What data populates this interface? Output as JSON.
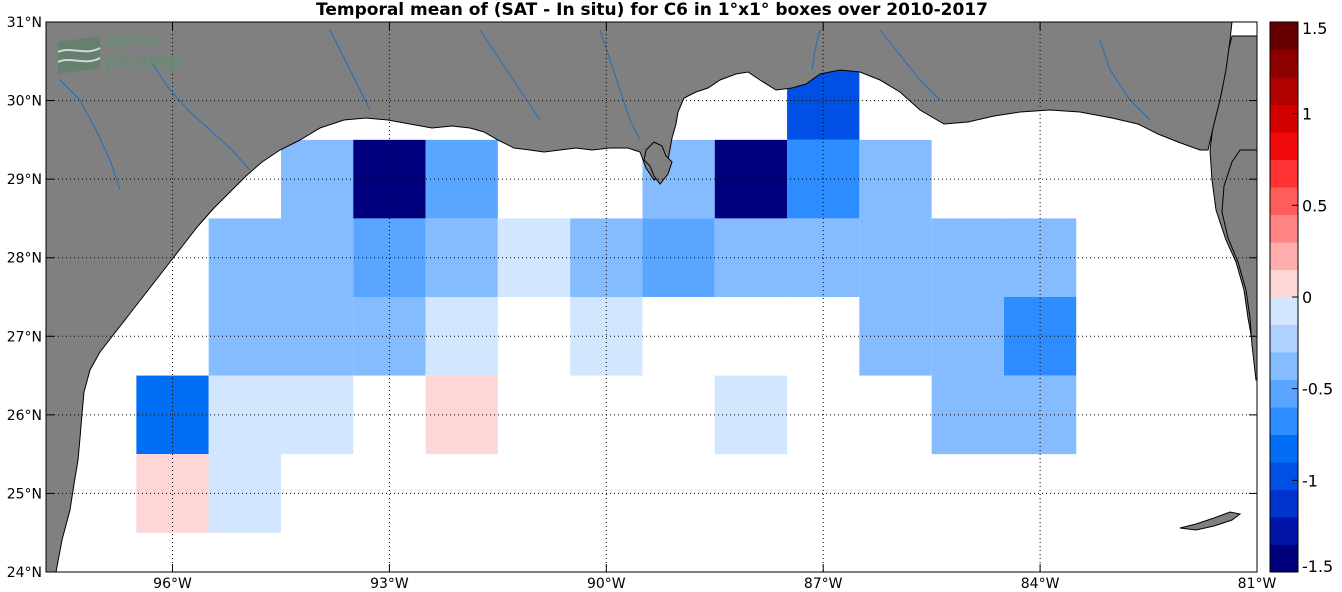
{
  "title": "Temporal mean of (SAT - In situ) for C6 in 1°x1° boxes over 2010-2017",
  "logo": {
    "line1": "smos",
    "line2": "pi-mep"
  },
  "colors": {
    "land": "#808080",
    "coast": "#000000",
    "river": "#1f6fbf",
    "grid": "#000000"
  },
  "chart_data": {
    "type": "heatmap",
    "title": "Temporal mean of (SAT - In situ) for C6 in 1°x1° boxes over 2010-2017",
    "xlim": [
      -97.75,
      -81
    ],
    "ylim": [
      24,
      31
    ],
    "xticks": [
      {
        "value": -96,
        "label": "96°W"
      },
      {
        "value": -93,
        "label": "93°W"
      },
      {
        "value": -90,
        "label": "90°W"
      },
      {
        "value": -87,
        "label": "87°W"
      },
      {
        "value": -84,
        "label": "84°W"
      },
      {
        "value": -81,
        "label": "81°W"
      }
    ],
    "yticks": [
      {
        "value": 24,
        "label": "24°N"
      },
      {
        "value": 25,
        "label": "25°N"
      },
      {
        "value": 26,
        "label": "26°N"
      },
      {
        "value": 27,
        "label": "27°N"
      },
      {
        "value": 28,
        "label": "28°N"
      },
      {
        "value": 29,
        "label": "29°N"
      },
      {
        "value": 30,
        "label": "30°N"
      },
      {
        "value": 31,
        "label": "31°N"
      }
    ],
    "grid": true,
    "colorbar": {
      "range": [
        -1.5,
        1.5
      ],
      "ticks": [
        {
          "value": 1.5,
          "label": "1.5"
        },
        {
          "value": 1,
          "label": "1"
        },
        {
          "value": 0.5,
          "label": "0.5"
        },
        {
          "value": 0,
          "label": "0"
        },
        {
          "value": -0.5,
          "label": "-0.5"
        },
        {
          "value": -1,
          "label": "-1"
        },
        {
          "value": -1.5,
          "label": "-1.5"
        }
      ]
    },
    "cells": [
      {
        "lon": -96,
        "lat": 26,
        "value": -0.8
      },
      {
        "lon": -96,
        "lat": 25,
        "value": 0.15
      },
      {
        "lon": -95,
        "lat": 28,
        "value": -0.3
      },
      {
        "lon": -95,
        "lat": 27,
        "value": -0.3
      },
      {
        "lon": -95,
        "lat": 26,
        "value": -0.15
      },
      {
        "lon": -95,
        "lat": 25,
        "value": -0.15
      },
      {
        "lon": -94,
        "lat": 29,
        "value": -0.35
      },
      {
        "lon": -94,
        "lat": 28,
        "value": -0.4
      },
      {
        "lon": -94,
        "lat": 27,
        "value": -0.4
      },
      {
        "lon": -94,
        "lat": 26,
        "value": -0.15
      },
      {
        "lon": -93,
        "lat": 29,
        "value": -1.5
      },
      {
        "lon": -93,
        "lat": 28,
        "value": -0.55
      },
      {
        "lon": -93,
        "lat": 27,
        "value": -0.3
      },
      {
        "lon": -92,
        "lat": 29,
        "value": -0.55
      },
      {
        "lon": -92,
        "lat": 28,
        "value": -0.3
      },
      {
        "lon": -92,
        "lat": 27,
        "value": -0.15
      },
      {
        "lon": -92,
        "lat": 26,
        "value": 0.15
      },
      {
        "lon": -91,
        "lat": 28,
        "value": -0.15
      },
      {
        "lon": -90,
        "lat": 28,
        "value": -0.4
      },
      {
        "lon": -90,
        "lat": 27,
        "value": -0.15
      },
      {
        "lon": -89,
        "lat": 29,
        "value": -0.4
      },
      {
        "lon": -89,
        "lat": 28,
        "value": -0.5
      },
      {
        "lon": -88,
        "lat": 29,
        "value": -1.35
      },
      {
        "lon": -88,
        "lat": 28,
        "value": -0.45
      },
      {
        "lon": -88,
        "lat": 26,
        "value": -0.15
      },
      {
        "lon": -87,
        "lat": 30,
        "value": -0.95
      },
      {
        "lon": -87,
        "lat": 29,
        "value": -0.75
      },
      {
        "lon": -87,
        "lat": 28,
        "value": -0.3
      },
      {
        "lon": -86,
        "lat": 29,
        "value": -0.4
      },
      {
        "lon": -86,
        "lat": 28,
        "value": -0.3
      },
      {
        "lon": -86,
        "lat": 27,
        "value": -0.3
      },
      {
        "lon": -85,
        "lat": 28,
        "value": -0.3
      },
      {
        "lon": -85,
        "lat": 27,
        "value": -0.3
      },
      {
        "lon": -85,
        "lat": 26,
        "value": -0.45
      },
      {
        "lon": -84,
        "lat": 28,
        "value": -0.3
      },
      {
        "lon": -84,
        "lat": 27,
        "value": -0.65
      },
      {
        "lon": -84,
        "lat": 26,
        "value": -0.3
      }
    ]
  }
}
